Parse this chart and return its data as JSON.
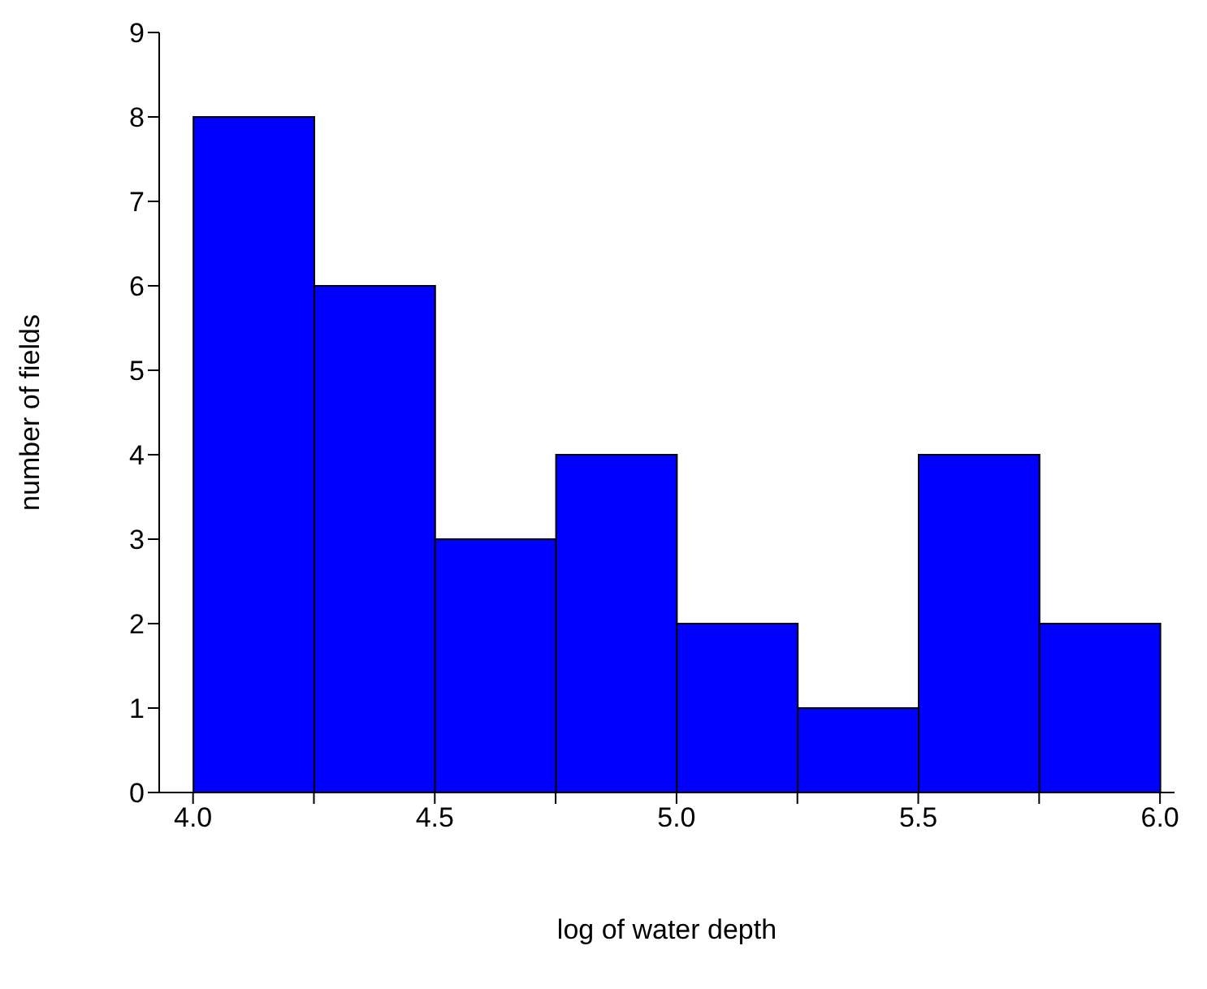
{
  "chart_data": {
    "type": "histogram",
    "xlabel": "log of water depth",
    "ylabel": "number of fields",
    "bins": [
      4.0,
      4.25,
      4.5,
      4.75,
      5.0,
      5.25,
      5.5,
      5.75,
      6.0
    ],
    "values": [
      8,
      6,
      3,
      4,
      2,
      1,
      4,
      2
    ],
    "color": "#0000ff",
    "xlim": [
      3.93,
      6.03
    ],
    "xticks": [
      {
        "value": 4,
        "label": "4.0"
      },
      {
        "value": 4.25,
        "label": null
      },
      {
        "value": 4.5,
        "label": "4.5"
      },
      {
        "value": 4.75,
        "label": null
      },
      {
        "value": 5,
        "label": "5.0"
      },
      {
        "value": 5.25,
        "label": null
      },
      {
        "value": 5.5,
        "label": "5.5"
      },
      {
        "value": 5.75,
        "label": null
      },
      {
        "value": 6,
        "label": "6.0"
      }
    ],
    "ylim": [
      0,
      9
    ],
    "yticks": [
      0,
      1,
      2,
      3,
      4,
      5,
      6,
      7,
      8,
      9
    ],
    "grid": false,
    "legend": false
  }
}
